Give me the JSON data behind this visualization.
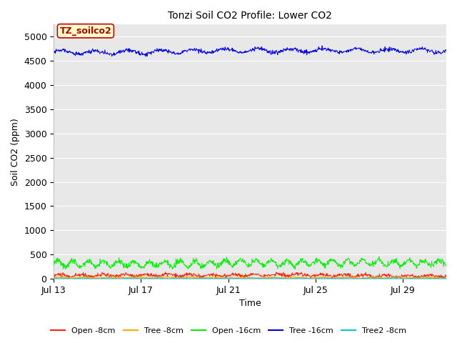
{
  "title": "Tonzi Soil CO2 Profile: Lower CO2",
  "xlabel": "Time",
  "ylabel": "Soil CO2 (ppm)",
  "ylim": [
    0,
    5250
  ],
  "yticks": [
    0,
    500,
    1000,
    1500,
    2000,
    2500,
    3000,
    3500,
    4000,
    4500,
    5000
  ],
  "xtick_labels": [
    "Jul 13",
    "Jul 17",
    "Jul 21",
    "Jul 25",
    "Jul 29"
  ],
  "tag_label": "TZ_soilco2",
  "tag_bg": "#ffffcc",
  "tag_border": "#cc0000",
  "tag_text_color": "#aa0000",
  "plot_bg": "#e8e8e8",
  "fig_bg": "#ffffff",
  "grid_color": "#ffffff",
  "series": {
    "open_8cm": {
      "label": "Open -8cm",
      "color": "#ff2200",
      "mean": 70,
      "noise": 20,
      "amp": 20,
      "period": 1.0
    },
    "tree_8cm": {
      "label": "Tree -8cm",
      "color": "#ffaa00",
      "mean": 25,
      "noise": 8,
      "amp": 10,
      "period": 1.2
    },
    "open_16cm": {
      "label": "Open -16cm",
      "color": "#00ee00",
      "mean": 320,
      "noise": 30,
      "amp": 60,
      "period": 0.7
    },
    "tree_16cm": {
      "label": "Tree -16cm",
      "color": "#0000dd",
      "mean": 4700,
      "noise": 20,
      "amp": 40,
      "period": 1.5
    },
    "tree2_8cm": {
      "label": "Tree2 -8cm",
      "color": "#00cccc",
      "mean": 10,
      "noise": 4,
      "amp": 5,
      "period": 1.1
    }
  },
  "n_points": 1000,
  "days": 18,
  "linewidth": 0.7,
  "title_fontsize": 10,
  "axis_label_fontsize": 9,
  "tick_fontsize": 9,
  "legend_fontsize": 8
}
